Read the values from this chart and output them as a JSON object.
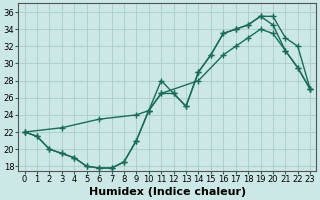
{
  "xlabel": "Humidex (Indice chaleur)",
  "bg_color": "#cce8e6",
  "grid_color": "#aaccca",
  "line_color": "#1a6b5a",
  "xlim": [
    -0.5,
    23.5
  ],
  "ylim": [
    17.5,
    37
  ],
  "yticks": [
    18,
    20,
    22,
    24,
    26,
    28,
    30,
    32,
    34,
    36
  ],
  "xticks": [
    0,
    1,
    2,
    3,
    4,
    5,
    6,
    7,
    8,
    9,
    10,
    11,
    12,
    13,
    14,
    15,
    16,
    17,
    18,
    19,
    20,
    21,
    22,
    23
  ],
  "curve1_x": [
    0,
    1,
    2,
    3,
    4,
    5,
    6,
    7,
    8,
    9,
    10,
    11,
    12,
    13,
    14,
    15,
    16,
    17,
    18,
    19,
    20,
    21,
    22,
    23
  ],
  "curve1_y": [
    22,
    21.5,
    20,
    19.5,
    19,
    18,
    17.8,
    17.8,
    18.5,
    21,
    24.5,
    28,
    26.5,
    25,
    29,
    31,
    33.5,
    34,
    34.5,
    35.5,
    34.5,
    31.5,
    29.5,
    27
  ],
  "curve2_x": [
    0,
    3,
    6,
    9,
    10,
    11,
    14,
    16,
    17,
    18,
    19,
    20,
    21,
    22,
    23
  ],
  "curve2_y": [
    22,
    22.5,
    23.5,
    24,
    24.5,
    26.5,
    28,
    31,
    32,
    33,
    34,
    33.5,
    31.5,
    29.5,
    27
  ],
  "curve3_x": [
    0,
    1,
    2,
    3,
    4,
    5,
    6,
    7,
    8,
    9,
    10,
    11,
    12,
    13,
    14,
    15,
    16,
    17,
    18,
    19,
    20,
    21,
    22,
    23
  ],
  "curve3_y": [
    22,
    21.5,
    20,
    19.5,
    19,
    18,
    17.8,
    17.8,
    18.5,
    21,
    24.5,
    26.5,
    26.5,
    25,
    29,
    31,
    33.5,
    34,
    34.5,
    35.5,
    35.5,
    33,
    32,
    27
  ],
  "marker": "+",
  "markersize": 5,
  "markeredgewidth": 1.0,
  "linewidth": 1.0,
  "tick_fontsize": 6,
  "xlabel_fontsize": 8
}
